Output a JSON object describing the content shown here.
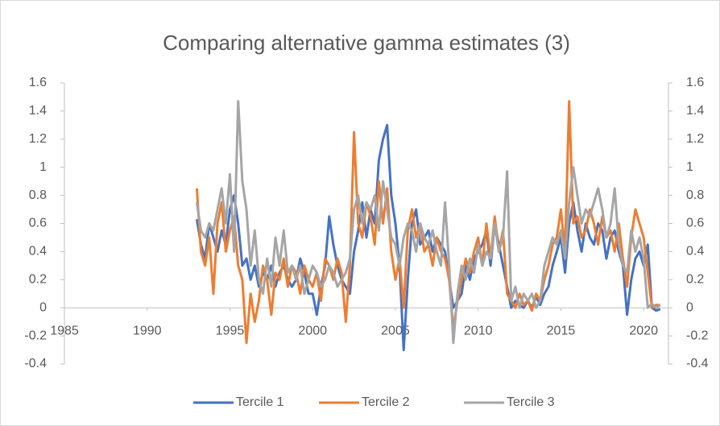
{
  "chart_data": {
    "type": "line",
    "title": "Comparing alternative gamma estimates (3)",
    "x": [
      1993,
      1993.25,
      1993.5,
      1993.75,
      1994,
      1994.25,
      1994.5,
      1994.75,
      1995,
      1995.25,
      1995.5,
      1995.75,
      1996,
      1996.25,
      1996.5,
      1996.75,
      1997,
      1997.25,
      1997.5,
      1997.75,
      1998,
      1998.25,
      1998.5,
      1998.75,
      1999,
      1999.25,
      1999.5,
      1999.75,
      2000,
      2000.25,
      2000.5,
      2000.75,
      2001,
      2001.25,
      2001.5,
      2001.75,
      2002,
      2002.25,
      2002.5,
      2002.75,
      2003,
      2003.25,
      2003.5,
      2003.75,
      2004,
      2004.25,
      2004.5,
      2004.75,
      2005,
      2005.25,
      2005.5,
      2005.75,
      2006,
      2006.25,
      2006.5,
      2006.75,
      2007,
      2007.25,
      2007.5,
      2007.75,
      2008,
      2008.25,
      2008.5,
      2008.75,
      2009,
      2009.25,
      2009.5,
      2009.75,
      2010,
      2010.25,
      2010.5,
      2010.75,
      2011,
      2011.25,
      2011.5,
      2011.75,
      2012,
      2012.25,
      2012.5,
      2012.75,
      2013,
      2013.25,
      2013.5,
      2013.75,
      2014,
      2014.25,
      2014.5,
      2014.75,
      2015,
      2015.25,
      2015.5,
      2015.75,
      2016,
      2016.25,
      2016.5,
      2016.75,
      2017,
      2017.25,
      2017.5,
      2017.75,
      2018,
      2018.25,
      2018.5,
      2018.75,
      2019,
      2019.25,
      2019.5,
      2019.75,
      2020,
      2020.25,
      2020.5,
      2020.75,
      2021
    ],
    "series": [
      {
        "name": "Tercile 1",
        "color": "#4472c4",
        "values": [
          0.63,
          0.45,
          0.35,
          0.6,
          0.5,
          0.4,
          0.55,
          0.45,
          0.7,
          0.8,
          0.6,
          0.3,
          0.35,
          0.2,
          0.3,
          0.15,
          0.25,
          0.2,
          0.3,
          0.15,
          0.25,
          0.3,
          0.2,
          0.15,
          0.2,
          0.35,
          0.25,
          0.1,
          0.1,
          -0.05,
          0.15,
          0.3,
          0.65,
          0.45,
          0.3,
          0.2,
          0.15,
          0.1,
          0.4,
          0.55,
          0.75,
          0.5,
          0.7,
          0.6,
          1.05,
          1.2,
          1.3,
          0.8,
          0.6,
          0.3,
          -0.3,
          0.2,
          0.6,
          0.7,
          0.45,
          0.5,
          0.55,
          0.4,
          0.5,
          0.45,
          0.4,
          0.2,
          0.0,
          0.05,
          0.1,
          0.3,
          0.2,
          0.35,
          0.4,
          0.45,
          0.55,
          0.3,
          0.6,
          0.45,
          0.3,
          0.15,
          0.0,
          0.05,
          0.02,
          0.0,
          0.05,
          0.0,
          0.08,
          0.02,
          0.1,
          0.15,
          0.3,
          0.4,
          0.5,
          0.25,
          0.6,
          0.75,
          0.55,
          0.4,
          0.6,
          0.5,
          0.45,
          0.6,
          0.55,
          0.35,
          0.5,
          0.55,
          0.4,
          0.3,
          -0.05,
          0.2,
          0.35,
          0.4,
          0.3,
          0.45,
          0.0,
          -0.02,
          -0.01
        ]
      },
      {
        "name": "Tercile 2",
        "color": "#ed7d31",
        "values": [
          0.85,
          0.4,
          0.3,
          0.5,
          0.1,
          0.6,
          0.75,
          0.4,
          0.55,
          0.65,
          0.3,
          0.2,
          -0.25,
          0.1,
          -0.1,
          0.05,
          0.3,
          0.2,
          -0.05,
          0.25,
          0.2,
          0.35,
          0.15,
          0.3,
          0.25,
          0.1,
          0.3,
          0.2,
          0.15,
          0.25,
          0.05,
          0.35,
          0.3,
          0.2,
          0.35,
          0.25,
          -0.1,
          0.3,
          1.25,
          0.6,
          0.5,
          0.75,
          0.65,
          0.45,
          0.9,
          0.6,
          0.85,
          0.4,
          0.2,
          0.35,
          0.0,
          0.55,
          0.7,
          0.5,
          0.6,
          0.4,
          0.45,
          0.3,
          0.5,
          0.4,
          0.35,
          0.2,
          -0.15,
          0.05,
          0.2,
          0.35,
          0.25,
          0.4,
          0.5,
          0.3,
          0.6,
          0.35,
          0.65,
          0.4,
          0.55,
          0.1,
          0.05,
          0.0,
          0.1,
          0.02,
          0.05,
          -0.02,
          0.1,
          0.05,
          0.2,
          0.3,
          0.45,
          0.5,
          0.7,
          0.4,
          1.47,
          0.6,
          0.65,
          0.5,
          0.55,
          0.7,
          0.6,
          0.45,
          0.65,
          0.5,
          0.55,
          0.4,
          0.6,
          0.35,
          0.15,
          0.5,
          0.7,
          0.6,
          0.5,
          0.25,
          0.0,
          0.02,
          0.02
        ]
      },
      {
        "name": "Tercile 3",
        "color": "#a5a5a5",
        "values": [
          0.75,
          0.55,
          0.5,
          0.6,
          0.55,
          0.7,
          0.85,
          0.6,
          0.95,
          0.4,
          1.47,
          0.9,
          0.7,
          0.3,
          0.55,
          0.2,
          0.1,
          0.35,
          0.15,
          0.5,
          0.3,
          0.55,
          0.25,
          0.3,
          0.2,
          0.3,
          0.1,
          0.2,
          0.3,
          0.25,
          0.15,
          0.2,
          0.3,
          0.25,
          0.15,
          0.2,
          0.25,
          0.35,
          0.7,
          0.8,
          0.6,
          0.75,
          0.7,
          0.8,
          0.55,
          0.9,
          0.7,
          0.5,
          0.45,
          0.3,
          0.5,
          0.6,
          0.55,
          0.4,
          0.6,
          0.5,
          0.45,
          0.55,
          0.4,
          0.3,
          0.75,
          0.3,
          -0.25,
          0.1,
          0.3,
          0.2,
          0.35,
          0.25,
          0.45,
          0.3,
          0.4,
          0.35,
          0.6,
          0.4,
          0.5,
          0.97,
          0.05,
          0.15,
          0.0,
          0.1,
          0.05,
          0.1,
          0.0,
          0.05,
          0.3,
          0.4,
          0.5,
          0.45,
          0.55,
          0.35,
          0.75,
          1.0,
          0.8,
          0.6,
          0.7,
          0.65,
          0.75,
          0.85,
          0.7,
          0.5,
          0.6,
          0.85,
          0.45,
          0.3,
          0.25,
          0.55,
          0.4,
          0.5,
          0.35,
          0.0,
          0.03,
          0.0,
          0.02
        ]
      }
    ],
    "xlim": [
      1985,
      2021.5
    ],
    "xticks": [
      1985,
      1990,
      1995,
      2000,
      2005,
      2010,
      2015,
      2020
    ],
    "ylim": [
      -0.4,
      1.6
    ],
    "yticks": [
      -0.4,
      -0.2,
      0,
      0.2,
      0.4,
      0.6,
      0.8,
      1,
      1.2,
      1.4,
      1.6
    ],
    "y2lim": [
      -0.4,
      1.6
    ],
    "y2ticks": [
      -0.4,
      -0.2,
      0,
      0.2,
      0.4,
      0.6,
      0.8,
      1,
      1.2,
      1.4,
      1.6
    ],
    "legend": "bottom"
  }
}
